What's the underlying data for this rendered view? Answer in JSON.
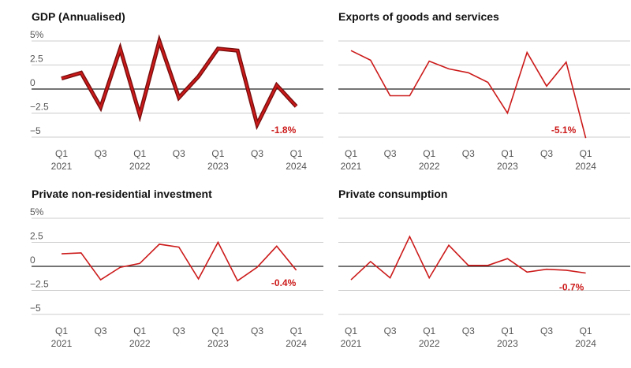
{
  "colors": {
    "series": "#cc1a1a",
    "series_dark": "#7a0e0e",
    "grid": "#cccccc",
    "zero": "#222222",
    "text": "#555555"
  },
  "chart_data": [
    {
      "type": "line",
      "title": "GDP (Annualised)",
      "x": [
        "Q1 2021",
        "Q2 2021",
        "Q3 2021",
        "Q4 2021",
        "Q1 2022",
        "Q2 2022",
        "Q3 2022",
        "Q4 2022",
        "Q1 2023",
        "Q2 2023",
        "Q3 2023",
        "Q4 2023",
        "Q1 2024"
      ],
      "values": [
        1.1,
        1.7,
        -1.9,
        4.2,
        -2.7,
        5.0,
        -0.9,
        1.3,
        4.2,
        4.0,
        -3.7,
        0.4,
        -1.8
      ],
      "ylim": [
        -5,
        5
      ],
      "yticks": [
        "5%",
        "2.5",
        "0",
        "−2.5",
        "−5"
      ],
      "xticks": [
        {
          "q": "Q1",
          "y": "2021"
        },
        {
          "q": "Q3",
          "y": ""
        },
        {
          "q": "Q1",
          "y": "2022"
        },
        {
          "q": "Q3",
          "y": ""
        },
        {
          "q": "Q1",
          "y": "2023"
        },
        {
          "q": "Q3",
          "y": ""
        },
        {
          "q": "Q1",
          "y": "2024"
        }
      ],
      "end_label": "-1.8%",
      "style": "thick"
    },
    {
      "type": "line",
      "title": "Exports of goods and services",
      "x": [
        "Q1 2021",
        "Q2 2021",
        "Q3 2021",
        "Q4 2021",
        "Q1 2022",
        "Q2 2022",
        "Q3 2022",
        "Q4 2022",
        "Q1 2023",
        "Q2 2023",
        "Q3 2023",
        "Q4 2023",
        "Q1 2024"
      ],
      "values": [
        4.0,
        3.0,
        -0.7,
        -0.7,
        2.9,
        2.1,
        1.7,
        0.7,
        -2.5,
        3.8,
        0.3,
        2.8,
        -5.1
      ],
      "ylim": [
        -5,
        5
      ],
      "yticks": [],
      "xticks": [
        {
          "q": "Q1",
          "y": "2021"
        },
        {
          "q": "Q3",
          "y": ""
        },
        {
          "q": "Q1",
          "y": "2022"
        },
        {
          "q": "Q3",
          "y": ""
        },
        {
          "q": "Q1",
          "y": "2023"
        },
        {
          "q": "Q3",
          "y": ""
        },
        {
          "q": "Q1",
          "y": "2024"
        }
      ],
      "end_label": "-5.1%",
      "style": "thin"
    },
    {
      "type": "line",
      "title": "Private non-residential investment",
      "x": [
        "Q1 2021",
        "Q2 2021",
        "Q3 2021",
        "Q4 2021",
        "Q1 2022",
        "Q2 2022",
        "Q3 2022",
        "Q4 2022",
        "Q1 2023",
        "Q2 2023",
        "Q3 2023",
        "Q4 2023",
        "Q1 2024"
      ],
      "values": [
        1.3,
        1.4,
        -1.4,
        -0.1,
        0.3,
        2.3,
        2.0,
        -1.3,
        2.5,
        -1.5,
        -0.1,
        2.1,
        -0.4
      ],
      "ylim": [
        -5,
        5
      ],
      "yticks": [
        "5%",
        "2.5",
        "0",
        "−2.5",
        "−5"
      ],
      "xticks": [
        {
          "q": "Q1",
          "y": "2021"
        },
        {
          "q": "Q3",
          "y": ""
        },
        {
          "q": "Q1",
          "y": "2022"
        },
        {
          "q": "Q3",
          "y": ""
        },
        {
          "q": "Q1",
          "y": "2023"
        },
        {
          "q": "Q3",
          "y": ""
        },
        {
          "q": "Q1",
          "y": "2024"
        }
      ],
      "end_label": "-0.4%",
      "style": "thin"
    },
    {
      "type": "line",
      "title": "Private consumption",
      "x": [
        "Q1 2021",
        "Q2 2021",
        "Q3 2021",
        "Q4 2021",
        "Q1 2022",
        "Q2 2022",
        "Q3 2022",
        "Q4 2022",
        "Q1 2023",
        "Q2 2023",
        "Q3 2023",
        "Q4 2023",
        "Q1 2024"
      ],
      "values": [
        -1.4,
        0.5,
        -1.2,
        3.1,
        -1.2,
        2.2,
        0.1,
        0.1,
        0.8,
        -0.6,
        -0.3,
        -0.4,
        -0.7
      ],
      "ylim": [
        -5,
        5
      ],
      "yticks": [],
      "xticks": [
        {
          "q": "Q1",
          "y": "2021"
        },
        {
          "q": "Q3",
          "y": ""
        },
        {
          "q": "Q1",
          "y": "2022"
        },
        {
          "q": "Q3",
          "y": ""
        },
        {
          "q": "Q1",
          "y": "2023"
        },
        {
          "q": "Q3",
          "y": ""
        },
        {
          "q": "Q1",
          "y": "2024"
        }
      ],
      "end_label": "-0.7%",
      "style": "thin"
    }
  ]
}
